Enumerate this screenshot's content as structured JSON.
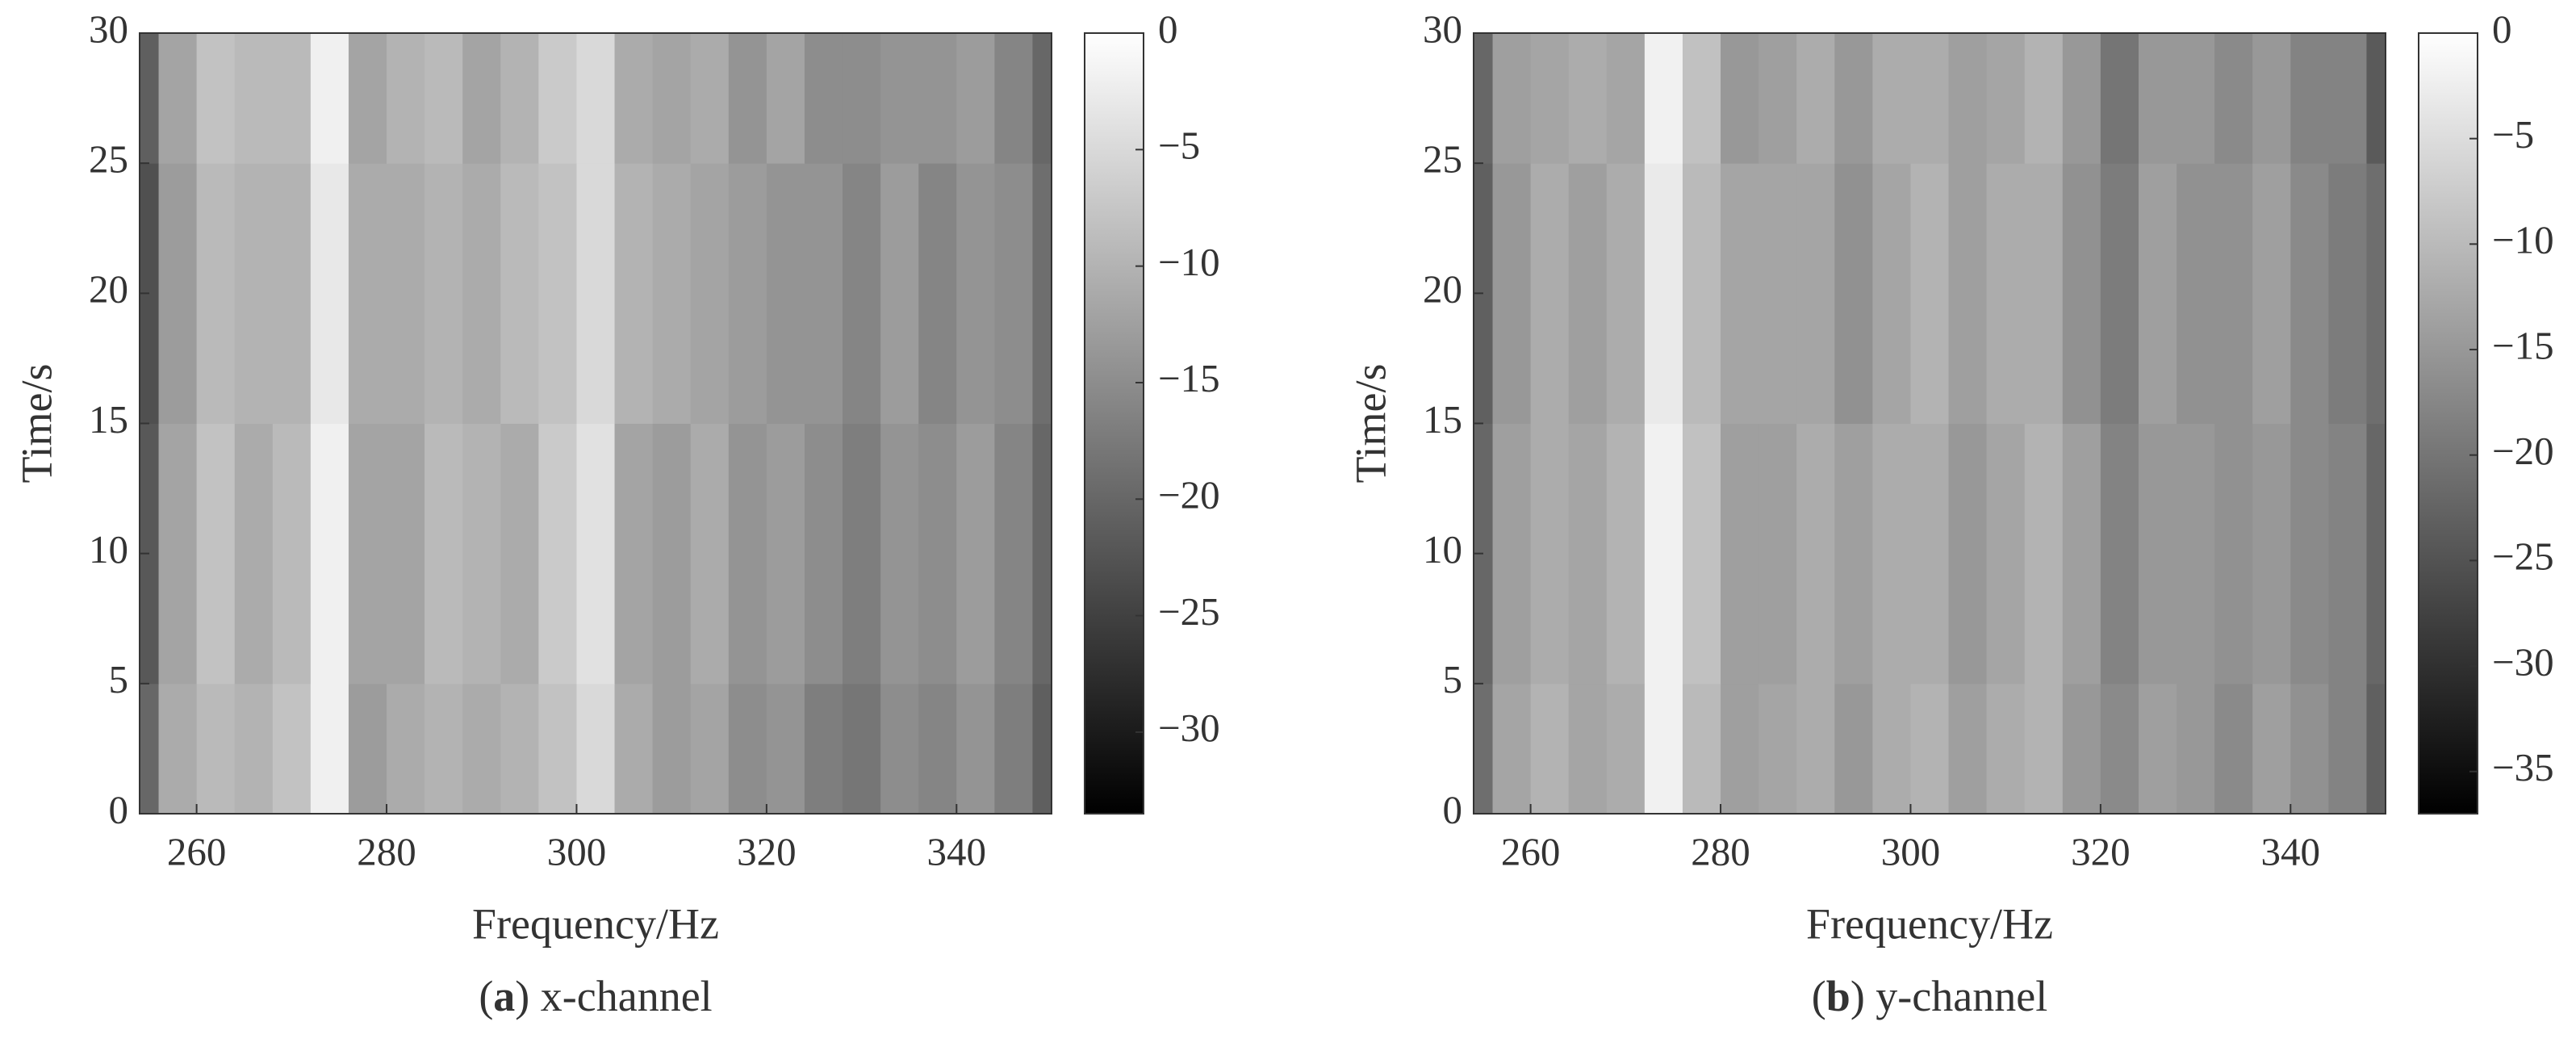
{
  "chart_data": [
    {
      "type": "heatmap",
      "xlabel": "Frequency/Hz",
      "ylabel": "Time/s",
      "caption_parts": [
        "(",
        "a",
        ") x-channel"
      ],
      "x": [
        254,
        258,
        262,
        266,
        270,
        274,
        278,
        282,
        286,
        290,
        294,
        298,
        302,
        306,
        310,
        314,
        318,
        322,
        326,
        330,
        334,
        338,
        342,
        346,
        350
      ],
      "y": [
        0,
        10,
        20,
        30
      ],
      "z": [
        [
          -20,
          -11,
          -9,
          -10,
          -8,
          -2,
          -13,
          -11,
          -10,
          -11,
          -10,
          -8,
          -5,
          -11,
          -13,
          -12,
          -15,
          -14,
          -17,
          -18,
          -15,
          -16,
          -14,
          -17,
          -21
        ],
        [
          -22,
          -12,
          -8,
          -11,
          -9,
          -2,
          -12,
          -12,
          -9,
          -10,
          -11,
          -7,
          -4,
          -12,
          -13,
          -11,
          -14,
          -13,
          -15,
          -17,
          -14,
          -15,
          -13,
          -16,
          -20
        ],
        [
          -23,
          -13,
          -9,
          -10,
          -10,
          -3,
          -11,
          -11,
          -10,
          -11,
          -9,
          -8,
          -5,
          -10,
          -11,
          -12,
          -13,
          -14,
          -14,
          -16,
          -13,
          -16,
          -14,
          -15,
          -19
        ],
        [
          -21,
          -12,
          -8,
          -9,
          -9,
          -2,
          -12,
          -10,
          -9,
          -12,
          -10,
          -7,
          -5,
          -11,
          -12,
          -11,
          -14,
          -12,
          -15,
          -15,
          -14,
          -14,
          -13,
          -16,
          -20
        ]
      ],
      "xlim": [
        254,
        350
      ],
      "xticks": [
        260,
        280,
        300,
        320,
        340
      ],
      "ylim": [
        0,
        30
      ],
      "yticks": [
        0,
        5,
        10,
        15,
        20,
        25,
        30
      ],
      "colormap": "gray",
      "clim": [
        -33.5,
        0
      ],
      "cticks": [
        {
          "value": -30,
          "label": "−30"
        },
        {
          "value": -25,
          "label": "−25"
        },
        {
          "value": -20,
          "label": "−20"
        },
        {
          "value": -15,
          "label": "−15"
        },
        {
          "value": -10,
          "label": "−10"
        },
        {
          "value": -5,
          "label": "−5"
        },
        0
      ]
    },
    {
      "type": "heatmap",
      "xlabel": "Frequency/Hz",
      "ylabel": "Time/s",
      "caption_parts": [
        "(",
        "b",
        ") y-channel"
      ],
      "x": [
        254,
        258,
        262,
        266,
        270,
        274,
        278,
        282,
        286,
        290,
        294,
        298,
        302,
        306,
        310,
        314,
        318,
        322,
        326,
        330,
        334,
        338,
        342,
        346,
        350
      ],
      "y": [
        0,
        10,
        20,
        30
      ],
      "z": [
        [
          -21,
          -13,
          -11,
          -13,
          -12,
          -2,
          -10,
          -14,
          -13,
          -12,
          -15,
          -12,
          -11,
          -14,
          -12,
          -11,
          -15,
          -17,
          -14,
          -15,
          -17,
          -14,
          -16,
          -18,
          -23
        ],
        [
          -22,
          -14,
          -12,
          -13,
          -11,
          -2,
          -9,
          -14,
          -14,
          -12,
          -14,
          -12,
          -12,
          -15,
          -13,
          -11,
          -14,
          -18,
          -15,
          -15,
          -16,
          -15,
          -17,
          -18,
          -22
        ],
        [
          -23,
          -15,
          -12,
          -14,
          -12,
          -3,
          -10,
          -13,
          -13,
          -13,
          -16,
          -13,
          -11,
          -14,
          -12,
          -12,
          -16,
          -19,
          -14,
          -16,
          -16,
          -14,
          -17,
          -19,
          -21
        ],
        [
          -22,
          -14,
          -13,
          -12,
          -13,
          -2,
          -9,
          -15,
          -14,
          -12,
          -15,
          -12,
          -12,
          -14,
          -13,
          -11,
          -15,
          -20,
          -15,
          -15,
          -17,
          -15,
          -18,
          -18,
          -24
        ]
      ],
      "xlim": [
        254,
        350
      ],
      "xticks": [
        260,
        280,
        300,
        320,
        340
      ],
      "ylim": [
        0,
        30
      ],
      "yticks": [
        0,
        5,
        10,
        15,
        20,
        25,
        30
      ],
      "colormap": "gray",
      "clim": [
        -37,
        0
      ],
      "cticks": [
        {
          "value": -35,
          "label": "−35"
        },
        {
          "value": -30,
          "label": "−30"
        },
        {
          "value": -25,
          "label": "−25"
        },
        {
          "value": -20,
          "label": "−20"
        },
        {
          "value": -15,
          "label": "−15"
        },
        {
          "value": -10,
          "label": "−10"
        },
        {
          "value": -5,
          "label": "−5"
        },
        0
      ]
    }
  ]
}
